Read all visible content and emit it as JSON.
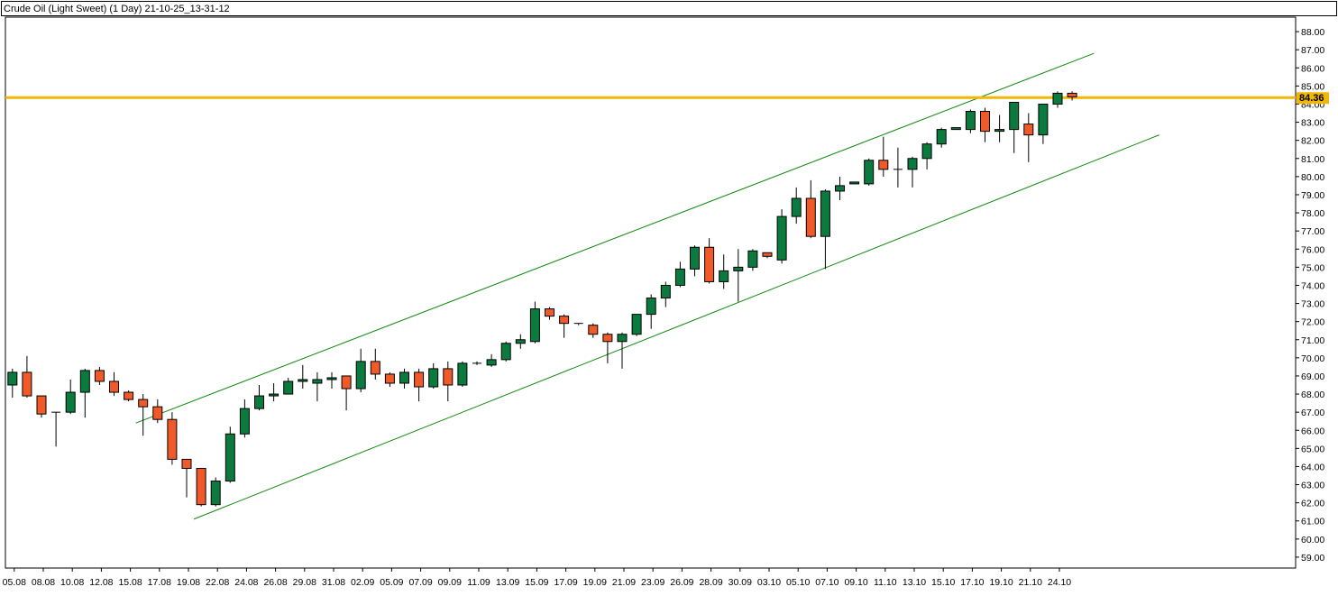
{
  "title": "Crude Oil (Light Sweet) (1 Day) 21-10-25_13-31-12",
  "colors": {
    "up": "#0b7a3e",
    "down": "#f05a28",
    "channel": "#128a12",
    "price_line": "#f2b705",
    "price_badge": "#f2b705",
    "border": "#000000"
  },
  "chart_data": {
    "type": "candlestick",
    "title": "Crude Oil (Light Sweet) (1 Day) 21-10-25_13-31-12",
    "ylim": [
      58.4,
      88.8
    ],
    "yticks": [
      "59.00",
      "60.00",
      "61.00",
      "62.00",
      "63.00",
      "64.00",
      "65.00",
      "66.00",
      "67.00",
      "68.00",
      "69.00",
      "70.00",
      "71.00",
      "72.00",
      "73.00",
      "74.00",
      "75.00",
      "76.00",
      "77.00",
      "78.00",
      "79.00",
      "80.00",
      "81.00",
      "82.00",
      "83.00",
      "84.00",
      "85.00",
      "86.00",
      "87.00",
      "88.00"
    ],
    "xlabels": [
      "05.08",
      "08.08",
      "10.08",
      "12.08",
      "15.08",
      "17.08",
      "19.08",
      "22.08",
      "24.08",
      "26.08",
      "29.08",
      "31.08",
      "02.09",
      "05.09",
      "07.09",
      "09.09",
      "11.09",
      "13.09",
      "15.09",
      "17.09",
      "19.09",
      "21.09",
      "23.09",
      "26.09",
      "28.09",
      "30.09",
      "03.10",
      "05.10",
      "07.10",
      "09.10",
      "11.10",
      "13.10",
      "15.10",
      "17.10",
      "19.10",
      "21.10",
      "24.10"
    ],
    "current_price": "84.36",
    "candles": [
      {
        "o": 68.5,
        "h": 69.4,
        "l": 67.8,
        "c": 69.2
      },
      {
        "o": 69.2,
        "h": 70.1,
        "l": 67.8,
        "c": 67.9
      },
      {
        "o": 67.9,
        "h": 67.9,
        "l": 66.7,
        "c": 66.9
      },
      {
        "o": 67.0,
        "h": 67.0,
        "l": 65.1,
        "c": 67.0
      },
      {
        "o": 67.0,
        "h": 68.8,
        "l": 66.9,
        "c": 68.1
      },
      {
        "o": 68.1,
        "h": 69.4,
        "l": 66.7,
        "c": 69.3
      },
      {
        "o": 69.3,
        "h": 69.5,
        "l": 68.5,
        "c": 68.7
      },
      {
        "o": 68.7,
        "h": 69.2,
        "l": 67.9,
        "c": 68.1
      },
      {
        "o": 68.1,
        "h": 68.2,
        "l": 67.6,
        "c": 67.7
      },
      {
        "o": 67.7,
        "h": 68.0,
        "l": 65.7,
        "c": 67.3
      },
      {
        "o": 67.3,
        "h": 67.7,
        "l": 66.4,
        "c": 66.6
      },
      {
        "o": 66.6,
        "h": 67.0,
        "l": 64.1,
        "c": 64.4
      },
      {
        "o": 64.4,
        "h": 64.4,
        "l": 62.3,
        "c": 63.9
      },
      {
        "o": 63.9,
        "h": 63.9,
        "l": 61.8,
        "c": 61.9
      },
      {
        "o": 61.9,
        "h": 63.4,
        "l": 61.8,
        "c": 63.2
      },
      {
        "o": 63.2,
        "h": 66.2,
        "l": 63.1,
        "c": 65.8
      },
      {
        "o": 65.8,
        "h": 67.7,
        "l": 65.6,
        "c": 67.2
      },
      {
        "o": 67.2,
        "h": 68.5,
        "l": 67.1,
        "c": 67.9
      },
      {
        "o": 67.9,
        "h": 68.6,
        "l": 67.6,
        "c": 68.0
      },
      {
        "o": 68.0,
        "h": 68.9,
        "l": 68.0,
        "c": 68.7
      },
      {
        "o": 68.7,
        "h": 69.6,
        "l": 68.3,
        "c": 68.8
      },
      {
        "o": 68.6,
        "h": 69.2,
        "l": 67.6,
        "c": 68.8
      },
      {
        "o": 68.8,
        "h": 69.2,
        "l": 68.3,
        "c": 68.9
      },
      {
        "o": 69.0,
        "h": 69.0,
        "l": 67.1,
        "c": 68.3
      },
      {
        "o": 68.3,
        "h": 70.5,
        "l": 68.1,
        "c": 69.8
      },
      {
        "o": 69.8,
        "h": 70.5,
        "l": 68.8,
        "c": 69.1
      },
      {
        "o": 69.1,
        "h": 69.2,
        "l": 68.4,
        "c": 68.6
      },
      {
        "o": 68.6,
        "h": 69.4,
        "l": 68.3,
        "c": 69.2
      },
      {
        "o": 69.2,
        "h": 69.4,
        "l": 67.6,
        "c": 68.4
      },
      {
        "o": 68.4,
        "h": 69.7,
        "l": 68.3,
        "c": 69.4
      },
      {
        "o": 69.4,
        "h": 69.8,
        "l": 67.6,
        "c": 68.5
      },
      {
        "o": 68.5,
        "h": 69.8,
        "l": 68.4,
        "c": 69.7
      },
      {
        "o": 69.7,
        "h": 69.8,
        "l": 69.6,
        "c": 69.7
      },
      {
        "o": 69.6,
        "h": 70.2,
        "l": 69.5,
        "c": 69.9
      },
      {
        "o": 69.9,
        "h": 70.9,
        "l": 69.8,
        "c": 70.8
      },
      {
        "o": 70.8,
        "h": 71.3,
        "l": 70.5,
        "c": 71.0
      },
      {
        "o": 70.9,
        "h": 73.1,
        "l": 70.8,
        "c": 72.7
      },
      {
        "o": 72.7,
        "h": 72.8,
        "l": 72.1,
        "c": 72.3
      },
      {
        "o": 72.3,
        "h": 72.4,
        "l": 71.1,
        "c": 71.9
      },
      {
        "o": 71.9,
        "h": 71.9,
        "l": 71.8,
        "c": 71.9
      },
      {
        "o": 71.8,
        "h": 71.9,
        "l": 71.1,
        "c": 71.3
      },
      {
        "o": 71.3,
        "h": 71.4,
        "l": 69.7,
        "c": 70.9
      },
      {
        "o": 70.9,
        "h": 71.4,
        "l": 69.4,
        "c": 71.3
      },
      {
        "o": 71.3,
        "h": 72.4,
        "l": 71.2,
        "c": 72.4
      },
      {
        "o": 72.4,
        "h": 73.5,
        "l": 71.6,
        "c": 73.3
      },
      {
        "o": 73.3,
        "h": 74.2,
        "l": 72.8,
        "c": 74.0
      },
      {
        "o": 74.0,
        "h": 75.3,
        "l": 73.9,
        "c": 74.9
      },
      {
        "o": 74.9,
        "h": 76.2,
        "l": 74.5,
        "c": 76.1
      },
      {
        "o": 76.1,
        "h": 76.6,
        "l": 74.1,
        "c": 74.2
      },
      {
        "o": 74.2,
        "h": 75.7,
        "l": 73.8,
        "c": 74.8
      },
      {
        "o": 74.8,
        "h": 76.0,
        "l": 73.1,
        "c": 75.0
      },
      {
        "o": 75.0,
        "h": 76.0,
        "l": 74.8,
        "c": 75.9
      },
      {
        "o": 75.8,
        "h": 75.8,
        "l": 75.5,
        "c": 75.6
      },
      {
        "o": 75.4,
        "h": 78.2,
        "l": 75.2,
        "c": 77.8
      },
      {
        "o": 77.8,
        "h": 79.4,
        "l": 77.4,
        "c": 78.8
      },
      {
        "o": 78.8,
        "h": 79.8,
        "l": 76.6,
        "c": 76.7
      },
      {
        "o": 76.7,
        "h": 79.3,
        "l": 74.9,
        "c": 79.2
      },
      {
        "o": 79.2,
        "h": 80.0,
        "l": 78.7,
        "c": 79.5
      },
      {
        "o": 79.6,
        "h": 79.7,
        "l": 79.6,
        "c": 79.7
      },
      {
        "o": 79.6,
        "h": 81.0,
        "l": 79.5,
        "c": 80.9
      },
      {
        "o": 80.9,
        "h": 82.2,
        "l": 80.0,
        "c": 80.4
      },
      {
        "o": 80.4,
        "h": 81.6,
        "l": 79.4,
        "c": 80.4
      },
      {
        "o": 80.4,
        "h": 81.1,
        "l": 79.4,
        "c": 81.0
      },
      {
        "o": 81.0,
        "h": 81.9,
        "l": 80.4,
        "c": 81.8
      },
      {
        "o": 81.8,
        "h": 82.7,
        "l": 81.6,
        "c": 82.6
      },
      {
        "o": 82.6,
        "h": 82.7,
        "l": 82.6,
        "c": 82.7
      },
      {
        "o": 82.6,
        "h": 83.7,
        "l": 82.4,
        "c": 83.6
      },
      {
        "o": 83.6,
        "h": 83.8,
        "l": 81.9,
        "c": 82.5
      },
      {
        "o": 82.5,
        "h": 83.4,
        "l": 81.9,
        "c": 82.6
      },
      {
        "o": 82.6,
        "h": 84.1,
        "l": 81.3,
        "c": 84.1
      },
      {
        "o": 82.9,
        "h": 83.5,
        "l": 80.8,
        "c": 82.3
      },
      {
        "o": 82.3,
        "h": 84.0,
        "l": 81.8,
        "c": 84.0
      },
      {
        "o": 84.0,
        "h": 84.7,
        "l": 83.8,
        "c": 84.6
      },
      {
        "o": 84.6,
        "h": 84.7,
        "l": 84.2,
        "c": 84.4
      }
    ],
    "channel_lines": [
      {
        "x0": 8.5,
        "p0": 66.4,
        "x1": 74.5,
        "p1": 86.8
      },
      {
        "x0": 12.5,
        "p0": 61.1,
        "x1": 79.0,
        "p1": 82.3
      }
    ]
  }
}
